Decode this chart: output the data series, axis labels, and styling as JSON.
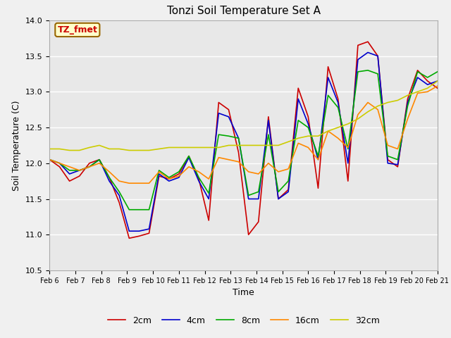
{
  "title": "Tonzi Soil Temperature Set A",
  "xlabel": "Time",
  "ylabel": "Soil Temperature (C)",
  "ylim": [
    10.5,
    14.0
  ],
  "annotation": "TZ_fmet",
  "fig_facecolor": "#f0f0f0",
  "plot_facecolor": "#e8e8e8",
  "legend_labels": [
    "2cm",
    "4cm",
    "8cm",
    "16cm",
    "32cm"
  ],
  "legend_colors": [
    "#cc0000",
    "#0000cc",
    "#00aa00",
    "#ff8800",
    "#cccc00"
  ],
  "line_width": 1.2,
  "x_ticks": [
    "Feb 6",
    "Feb 7",
    "Feb 8",
    "Feb 9",
    "Feb 10",
    "Feb 11",
    "Feb 12",
    "Feb 13",
    "Feb 14",
    "Feb 15",
    "Feb 16",
    "Feb 17",
    "Feb 18",
    "Feb 19",
    "Feb 20",
    "Feb 21"
  ],
  "series_2cm": [
    12.05,
    11.95,
    11.75,
    11.82,
    12.0,
    12.05,
    11.8,
    11.45,
    10.95,
    10.98,
    11.02,
    11.82,
    11.78,
    11.85,
    12.1,
    11.78,
    11.2,
    12.85,
    12.75,
    12.15,
    11.0,
    11.18,
    12.65,
    11.5,
    11.63,
    13.05,
    12.65,
    11.65,
    13.35,
    12.9,
    11.75,
    13.65,
    13.7,
    13.5,
    12.05,
    11.95,
    12.9,
    13.3,
    13.15,
    13.05
  ],
  "series_4cm": [
    12.05,
    12.0,
    11.85,
    11.9,
    11.95,
    12.05,
    11.75,
    11.55,
    11.05,
    11.05,
    11.08,
    11.85,
    11.75,
    11.8,
    12.08,
    11.75,
    11.5,
    12.7,
    12.65,
    12.35,
    11.5,
    11.5,
    12.6,
    11.5,
    11.6,
    12.9,
    12.55,
    12.05,
    13.2,
    12.85,
    12.0,
    13.45,
    13.55,
    13.5,
    12.0,
    11.98,
    12.85,
    13.2,
    13.1,
    13.15
  ],
  "series_8cm": [
    12.05,
    12.0,
    11.9,
    11.9,
    11.95,
    12.05,
    11.8,
    11.6,
    11.35,
    11.35,
    11.35,
    11.9,
    11.8,
    11.88,
    12.1,
    11.8,
    11.58,
    12.4,
    12.38,
    12.35,
    11.55,
    11.6,
    12.4,
    11.6,
    11.75,
    12.6,
    12.5,
    12.1,
    12.95,
    12.78,
    12.2,
    13.28,
    13.3,
    13.25,
    12.1,
    12.05,
    12.8,
    13.28,
    13.2,
    13.28
  ],
  "series_16cm": [
    12.05,
    12.0,
    11.95,
    11.9,
    11.95,
    12.0,
    11.88,
    11.75,
    11.72,
    11.72,
    11.72,
    11.88,
    11.78,
    11.82,
    11.95,
    11.88,
    11.78,
    12.08,
    12.05,
    12.02,
    11.88,
    11.85,
    12.0,
    11.88,
    11.92,
    12.28,
    12.22,
    12.05,
    12.45,
    12.35,
    12.22,
    12.68,
    12.85,
    12.75,
    12.25,
    12.2,
    12.62,
    12.98,
    13.0,
    13.08
  ],
  "series_32cm": [
    12.2,
    12.2,
    12.18,
    12.18,
    12.22,
    12.25,
    12.2,
    12.2,
    12.18,
    12.18,
    12.18,
    12.2,
    12.22,
    12.22,
    12.22,
    12.22,
    12.22,
    12.22,
    12.25,
    12.25,
    12.25,
    12.25,
    12.25,
    12.25,
    12.3,
    12.35,
    12.38,
    12.38,
    12.45,
    12.5,
    12.55,
    12.62,
    12.72,
    12.8,
    12.85,
    12.88,
    12.95,
    13.0,
    13.05,
    13.15
  ]
}
